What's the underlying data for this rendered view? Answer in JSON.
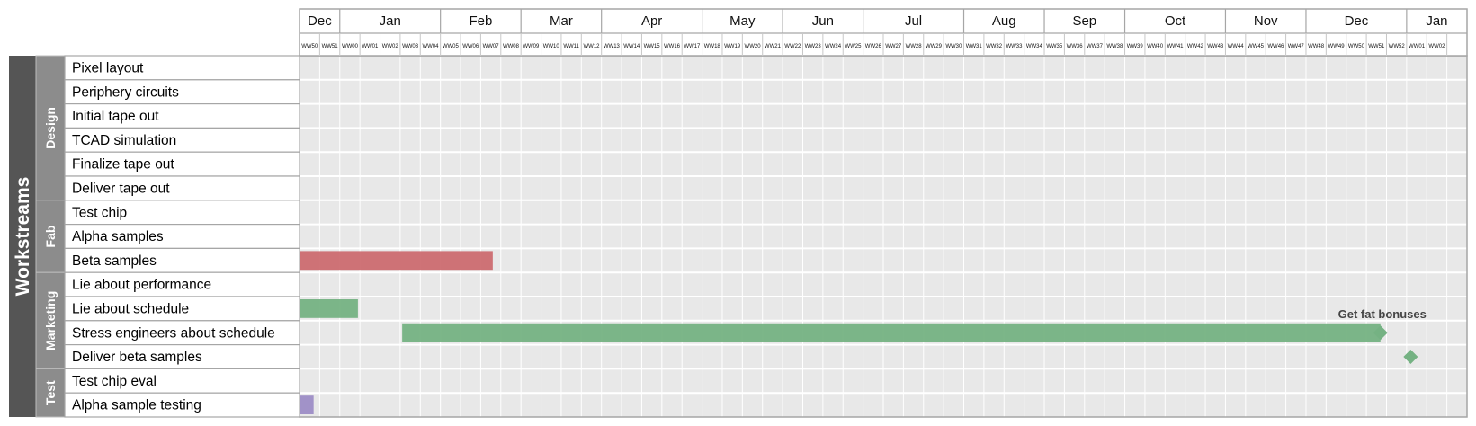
{
  "chart_data": {
    "type": "gantt",
    "section_title": "Workstreams",
    "months": [
      {
        "label": "Dec",
        "weeks": [
          "WW50",
          "WW51"
        ]
      },
      {
        "label": "Jan",
        "weeks": [
          "WW00",
          "WW01",
          "WW02",
          "WW03",
          "WW04"
        ]
      },
      {
        "label": "Feb",
        "weeks": [
          "WW05",
          "WW06",
          "WW07",
          "WW08"
        ]
      },
      {
        "label": "Mar",
        "weeks": [
          "WW09",
          "WW10",
          "WW11",
          "WW12"
        ]
      },
      {
        "label": "Apr",
        "weeks": [
          "WW13",
          "WW14",
          "WW15",
          "WW16",
          "WW17"
        ]
      },
      {
        "label": "May",
        "weeks": [
          "WW18",
          "WW19",
          "WW20",
          "WW21"
        ]
      },
      {
        "label": "Jun",
        "weeks": [
          "WW22",
          "WW23",
          "WW24",
          "WW25"
        ]
      },
      {
        "label": "Jul",
        "weeks": [
          "WW26",
          "WW27",
          "WW28",
          "WW29",
          "WW30"
        ]
      },
      {
        "label": "Aug",
        "weeks": [
          "WW31",
          "WW32",
          "WW33",
          "WW34"
        ]
      },
      {
        "label": "Sep",
        "weeks": [
          "WW35",
          "WW36",
          "WW37",
          "WW38"
        ]
      },
      {
        "label": "Oct",
        "weeks": [
          "WW39",
          "WW40",
          "WW41",
          "WW42",
          "WW43"
        ]
      },
      {
        "label": "Nov",
        "weeks": [
          "WW44",
          "WW45",
          "WW46",
          "WW47"
        ]
      },
      {
        "label": "Dec",
        "weeks": [
          "WW48",
          "WW49",
          "WW50",
          "WW51",
          "WW52"
        ]
      },
      {
        "label": "Jan",
        "weeks": [
          "WW01",
          "WW02",
          ""
        ]
      }
    ],
    "groups": [
      {
        "name": "Design",
        "tasks": [
          {
            "name": "Pixel layout"
          },
          {
            "name": "Periphery circuits"
          },
          {
            "name": "Initial tape out"
          },
          {
            "name": "TCAD simulation"
          },
          {
            "name": "Finalize tape out"
          },
          {
            "name": "Deliver tape out"
          }
        ]
      },
      {
        "name": "Fab",
        "tasks": [
          {
            "name": "Test chip"
          },
          {
            "name": "Alpha samples"
          },
          {
            "name": "Beta samples",
            "bar": {
              "start_week": 0,
              "end_week": 9.6,
              "color": "#cc6b70"
            }
          }
        ]
      },
      {
        "name": "Marketing",
        "tasks": [
          {
            "name": "Lie about performance"
          },
          {
            "name": "Lie about schedule",
            "bar": {
              "start_week": 0,
              "end_week": 2.9,
              "color": "#75b283"
            }
          },
          {
            "name": "Stress engineers about schedule",
            "bar": {
              "start_week": 5.1,
              "end_week": 53.7,
              "color": "#75b283"
            },
            "milestone": {
              "week": 53.7,
              "label": "Get fat bonuses",
              "color": "#75b283"
            }
          },
          {
            "name": "Deliver beta samples",
            "milestone": {
              "week": 55.2,
              "color": "#75b283"
            }
          }
        ]
      },
      {
        "name": "Test",
        "tasks": [
          {
            "name": "Test chip eval"
          },
          {
            "name": "Alpha sample testing",
            "bar": {
              "start_week": 0,
              "end_week": 0.7,
              "color": "#9d8dc6"
            }
          }
        ]
      }
    ],
    "colors": {
      "section_fill": "#555555",
      "group_fill": "#8c8c8c",
      "grid_bg": "#e8e8e8",
      "grid_line": "#ffffff",
      "border": "#a6a6a6"
    }
  }
}
